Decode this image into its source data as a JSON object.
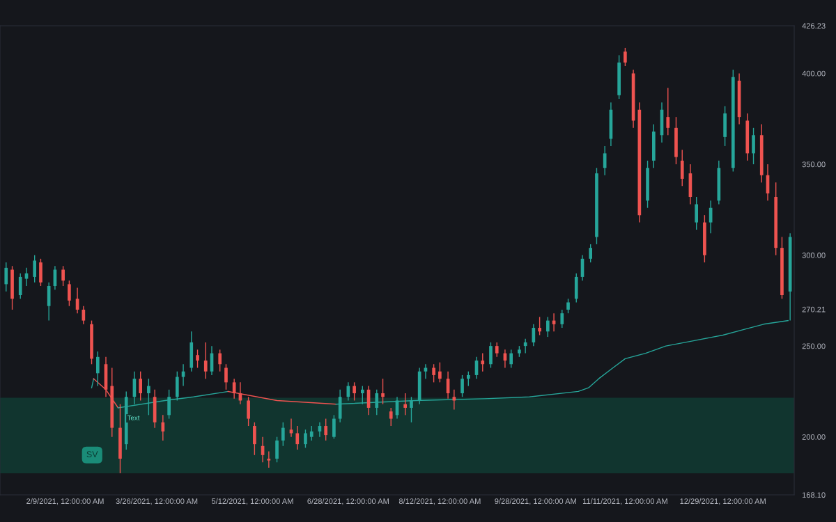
{
  "chart_data": {
    "type": "candlestick",
    "x": [
      "2021-01-11",
      "2021-01-14",
      "2021-01-18",
      "2021-01-21",
      "2021-01-25",
      "2021-01-28",
      "2021-02-01",
      "2021-02-04",
      "2021-02-08",
      "2021-02-11",
      "2021-02-15",
      "2021-02-18",
      "2021-02-22",
      "2021-02-25",
      "2021-03-01",
      "2021-03-04",
      "2021-03-08",
      "2021-03-11",
      "2021-03-15",
      "2021-03-18",
      "2021-03-22",
      "2021-03-25",
      "2021-03-29",
      "2021-04-01",
      "2021-04-05",
      "2021-04-08",
      "2021-04-12",
      "2021-04-15",
      "2021-04-19",
      "2021-04-22",
      "2021-04-26",
      "2021-04-29",
      "2021-05-03",
      "2021-05-06",
      "2021-05-10",
      "2021-05-13",
      "2021-05-17",
      "2021-05-20",
      "2021-05-24",
      "2021-05-27",
      "2021-05-31",
      "2021-06-03",
      "2021-06-07",
      "2021-06-10",
      "2021-06-14",
      "2021-06-17",
      "2021-06-21",
      "2021-06-24",
      "2021-06-28",
      "2021-07-01",
      "2021-07-05",
      "2021-07-08",
      "2021-07-12",
      "2021-07-15",
      "2021-07-19",
      "2021-07-22",
      "2021-07-26",
      "2021-07-29",
      "2021-08-02",
      "2021-08-05",
      "2021-08-09",
      "2021-08-12",
      "2021-08-16",
      "2021-08-19",
      "2021-08-23",
      "2021-08-26",
      "2021-08-30",
      "2021-09-02",
      "2021-09-06",
      "2021-09-09",
      "2021-09-13",
      "2021-09-16",
      "2021-09-20",
      "2021-09-23",
      "2021-09-27",
      "2021-09-30",
      "2021-10-04",
      "2021-10-07",
      "2021-10-11",
      "2021-10-14",
      "2021-10-18",
      "2021-10-21",
      "2021-10-25",
      "2021-10-28",
      "2021-11-01",
      "2021-11-04",
      "2021-11-08",
      "2021-11-11",
      "2021-11-15",
      "2021-11-18",
      "2021-11-22",
      "2021-11-25",
      "2021-11-29",
      "2021-12-02",
      "2021-12-06",
      "2021-12-09",
      "2021-12-13",
      "2021-12-16",
      "2021-12-20",
      "2021-12-23",
      "2021-12-27",
      "2021-12-30",
      "2022-01-03",
      "2022-01-06",
      "2022-01-10",
      "2022-01-13",
      "2022-01-17",
      "2022-01-20",
      "2022-01-24",
      "2022-01-27",
      "2022-01-31"
    ],
    "ohlc": [
      [
        284,
        296,
        280,
        293
      ],
      [
        292,
        294,
        270,
        276
      ],
      [
        278,
        290,
        276,
        288
      ],
      [
        287,
        293,
        283,
        290
      ],
      [
        288,
        300,
        285,
        297
      ],
      [
        296,
        298,
        283,
        285
      ],
      [
        272,
        285,
        264,
        283
      ],
      [
        283,
        294,
        281,
        292
      ],
      [
        292,
        294,
        283,
        286
      ],
      [
        284,
        286,
        272,
        275
      ],
      [
        276,
        282,
        268,
        270
      ],
      [
        270,
        272,
        262,
        264
      ],
      [
        262,
        264,
        240,
        243
      ],
      [
        235,
        247,
        228,
        244
      ],
      [
        240,
        244,
        222,
        226
      ],
      [
        228,
        238,
        200,
        205
      ],
      [
        205,
        218,
        180,
        188
      ],
      [
        196,
        225,
        193,
        222
      ],
      [
        222,
        236,
        218,
        232
      ],
      [
        232,
        236,
        220,
        224
      ],
      [
        224,
        232,
        212,
        228
      ],
      [
        222,
        226,
        205,
        208
      ],
      [
        208,
        212,
        198,
        203
      ],
      [
        212,
        226,
        210,
        222
      ],
      [
        222,
        236,
        220,
        233
      ],
      [
        233,
        240,
        228,
        236
      ],
      [
        238,
        258,
        236,
        252
      ],
      [
        245,
        248,
        238,
        242
      ],
      [
        242,
        252,
        232,
        236
      ],
      [
        236,
        250,
        234,
        246
      ],
      [
        246,
        248,
        236,
        240
      ],
      [
        238,
        240,
        226,
        230
      ],
      [
        230,
        232,
        221,
        224
      ],
      [
        224,
        230,
        218,
        220
      ],
      [
        220,
        222,
        206,
        210
      ],
      [
        206,
        208,
        190,
        196
      ],
      [
        195,
        200,
        186,
        190
      ],
      [
        188,
        192,
        183,
        187
      ],
      [
        188,
        200,
        186,
        198
      ],
      [
        198,
        208,
        195,
        205
      ],
      [
        204,
        210,
        200,
        202
      ],
      [
        202,
        206,
        193,
        196
      ],
      [
        196,
        204,
        194,
        202
      ],
      [
        200,
        206,
        198,
        203
      ],
      [
        203,
        208,
        200,
        206
      ],
      [
        206,
        210,
        198,
        201
      ],
      [
        200,
        212,
        199,
        210
      ],
      [
        210,
        226,
        208,
        222
      ],
      [
        222,
        230,
        220,
        228
      ],
      [
        228,
        230,
        220,
        224
      ],
      [
        224,
        228,
        218,
        226
      ],
      [
        226,
        228,
        212,
        216
      ],
      [
        216,
        226,
        212,
        224
      ],
      [
        224,
        232,
        218,
        222
      ],
      [
        214,
        216,
        206,
        210
      ],
      [
        212,
        222,
        210,
        220
      ],
      [
        218,
        224,
        212,
        216
      ],
      [
        216,
        222,
        208,
        220
      ],
      [
        220,
        238,
        218,
        236
      ],
      [
        236,
        240,
        232,
        238
      ],
      [
        238,
        240,
        230,
        234
      ],
      [
        236,
        241,
        230,
        232
      ],
      [
        232,
        236,
        221,
        224
      ],
      [
        222,
        226,
        215,
        220
      ],
      [
        224,
        234,
        222,
        232
      ],
      [
        232,
        236,
        228,
        234
      ],
      [
        234,
        244,
        232,
        242
      ],
      [
        242,
        246,
        236,
        240
      ],
      [
        240,
        252,
        238,
        250
      ],
      [
        250,
        252,
        244,
        246
      ],
      [
        246,
        248,
        238,
        242
      ],
      [
        240,
        248,
        238,
        246
      ],
      [
        246,
        250,
        244,
        248
      ],
      [
        250,
        254,
        246,
        252
      ],
      [
        252,
        262,
        250,
        260
      ],
      [
        260,
        266,
        256,
        258
      ],
      [
        258,
        266,
        255,
        264
      ],
      [
        264,
        268,
        258,
        262
      ],
      [
        262,
        270,
        260,
        268
      ],
      [
        270,
        276,
        268,
        274
      ],
      [
        276,
        290,
        274,
        288
      ],
      [
        288,
        300,
        286,
        298
      ],
      [
        298,
        306,
        296,
        304
      ],
      [
        310,
        348,
        306,
        345
      ],
      [
        348,
        360,
        344,
        356
      ],
      [
        364,
        384,
        360,
        380
      ],
      [
        388,
        410,
        386,
        406
      ],
      [
        412,
        414,
        404,
        406
      ],
      [
        400,
        402,
        370,
        374
      ],
      [
        380,
        384,
        318,
        322
      ],
      [
        330,
        352,
        326,
        348
      ],
      [
        352,
        372,
        348,
        368
      ],
      [
        366,
        384,
        362,
        380
      ],
      [
        376,
        392,
        366,
        370
      ],
      [
        370,
        376,
        350,
        354
      ],
      [
        352,
        358,
        338,
        342
      ],
      [
        345,
        350,
        328,
        332
      ],
      [
        318,
        332,
        314,
        328
      ],
      [
        318,
        322,
        296,
        300
      ],
      [
        318,
        330,
        312,
        326
      ],
      [
        330,
        352,
        328,
        348
      ],
      [
        365,
        382,
        360,
        378
      ],
      [
        348,
        402,
        346,
        398
      ],
      [
        396,
        400,
        372,
        376
      ],
      [
        374,
        378,
        352,
        356
      ],
      [
        356,
        370,
        350,
        366
      ],
      [
        366,
        372,
        340,
        344
      ],
      [
        344,
        350,
        330,
        334
      ],
      [
        332,
        340,
        300,
        304
      ],
      [
        304,
        310,
        276,
        278
      ],
      [
        280,
        312,
        264,
        310
      ]
    ],
    "colors": [
      "#26a69a",
      "#ef5350",
      "#26a69a",
      "#26a69a",
      "#26a69a",
      "#ef5350",
      "#26a69a",
      "#26a69a",
      "#ef5350",
      "#ef5350",
      "#ef5350",
      "#ef5350",
      "#ef5350",
      "#26a69a",
      "#ef5350",
      "#ef5350",
      "#ef5350",
      "#26a69a",
      "#26a69a",
      "#ef5350",
      "#26a69a",
      "#ef5350",
      "#ef5350",
      "#26a69a",
      "#26a69a",
      "#26a69a",
      "#26a69a",
      "#ef5350",
      "#ef5350",
      "#26a69a",
      "#ef5350",
      "#ef5350",
      "#ef5350",
      "#ef5350",
      "#ef5350",
      "#ef5350",
      "#ef5350",
      "#ef5350",
      "#26a69a",
      "#26a69a",
      "#ef5350",
      "#ef5350",
      "#26a69a",
      "#26a69a",
      "#26a69a",
      "#ef5350",
      "#26a69a",
      "#26a69a",
      "#26a69a",
      "#ef5350",
      "#26a69a",
      "#ef5350",
      "#26a69a",
      "#ef5350",
      "#ef5350",
      "#26a69a",
      "#ef5350",
      "#26a69a",
      "#26a69a",
      "#26a69a",
      "#ef5350",
      "#ef5350",
      "#ef5350",
      "#ef5350",
      "#26a69a",
      "#26a69a",
      "#26a69a",
      "#ef5350",
      "#26a69a",
      "#ef5350",
      "#ef5350",
      "#26a69a",
      "#26a69a",
      "#26a69a",
      "#26a69a",
      "#ef5350",
      "#26a69a",
      "#ef5350",
      "#26a69a",
      "#26a69a",
      "#26a69a",
      "#26a69a",
      "#26a69a",
      "#26a69a",
      "#26a69a",
      "#26a69a",
      "#26a69a",
      "#ef5350",
      "#ef5350",
      "#ef5350",
      "#26a69a",
      "#26a69a",
      "#26a69a",
      "#ef5350",
      "#ef5350",
      "#ef5350",
      "#ef5350",
      "#26a69a",
      "#ef5350",
      "#26a69a",
      "#26a69a",
      "#26a69a",
      "#26a69a",
      "#ef5350",
      "#ef5350",
      "#26a69a",
      "#ef5350",
      "#ef5350",
      "#ef5350",
      "#ef5350",
      "#26a69a"
    ],
    "series": [
      {
        "type": "line",
        "color": "#26a69a",
        "x": [
          "2021-02-22",
          "2021-02-23"
        ],
        "values": [
          227,
          232
        ]
      },
      {
        "type": "line",
        "color": "#ef5350",
        "x": [
          "2021-02-23",
          "2021-03-01",
          "2021-03-07"
        ],
        "values": [
          232,
          226,
          216
        ]
      },
      {
        "type": "line",
        "color": "#26a69a",
        "x": [
          "2021-03-07",
          "2021-03-30",
          "2021-04-13",
          "2021-04-30"
        ],
        "values": [
          216,
          220,
          222,
          225
        ]
      },
      {
        "type": "line",
        "color": "#ef5350",
        "x": [
          "2021-04-30",
          "2021-05-24",
          "2021-06-22"
        ],
        "values": [
          225,
          220,
          218
        ]
      },
      {
        "type": "line",
        "color": "#26a69a",
        "x": [
          "2021-06-22",
          "2021-07-31",
          "2021-09-03",
          "2021-09-25",
          "2021-10-19",
          "2021-10-24",
          "2021-10-29",
          "2021-11-05",
          "2021-11-11",
          "2021-11-21",
          "2021-12-01",
          "2021-12-15",
          "2021-12-29",
          "2022-01-08",
          "2022-01-18",
          "2022-01-30"
        ],
        "values": [
          218,
          220,
          221,
          222,
          225,
          227,
          232,
          238,
          243,
          246,
          250,
          253,
          256,
          259,
          262,
          264
        ]
      }
    ],
    "bands": [
      {
        "axis": "y",
        "from": 180,
        "to": 221.5,
        "color": "#11352f"
      }
    ],
    "annotations": [
      "SV",
      "Text"
    ],
    "xlim": [
      "2021-01-08",
      "2022-02-02"
    ],
    "xticks": [
      {
        "value": "2021-02-09",
        "label": "2/9/2021, 12:00:00 AM"
      },
      {
        "value": "2021-03-26",
        "label": "3/26/2021, 12:00:00 AM"
      },
      {
        "value": "2021-05-12",
        "label": "5/12/2021, 12:00:00 AM"
      },
      {
        "value": "2021-06-28",
        "label": "6/28/2021, 12:00:00 AM"
      },
      {
        "value": "2021-08-12",
        "label": "8/12/2021, 12:00:00 AM"
      },
      {
        "value": "2021-09-28",
        "label": "9/28/2021, 12:00:00 AM"
      },
      {
        "value": "2021-11-11",
        "label": "11/11/2021, 12:00:00 AM"
      },
      {
        "value": "2021-12-29",
        "label": "12/29/2021, 12:00:00 AM"
      }
    ],
    "ylim": [
      168.1,
      426.23
    ],
    "yticks": [
      {
        "value": 168.1,
        "label": "168.10"
      },
      {
        "value": 200,
        "label": "200.00"
      },
      {
        "value": 250,
        "label": "250.00"
      },
      {
        "value": 270.21,
        "label": "270.21"
      },
      {
        "value": 300,
        "label": "300.00"
      },
      {
        "value": 350,
        "label": "350.00"
      },
      {
        "value": 400,
        "label": "400.00"
      },
      {
        "value": 426.23,
        "label": "426.23"
      }
    ]
  }
}
